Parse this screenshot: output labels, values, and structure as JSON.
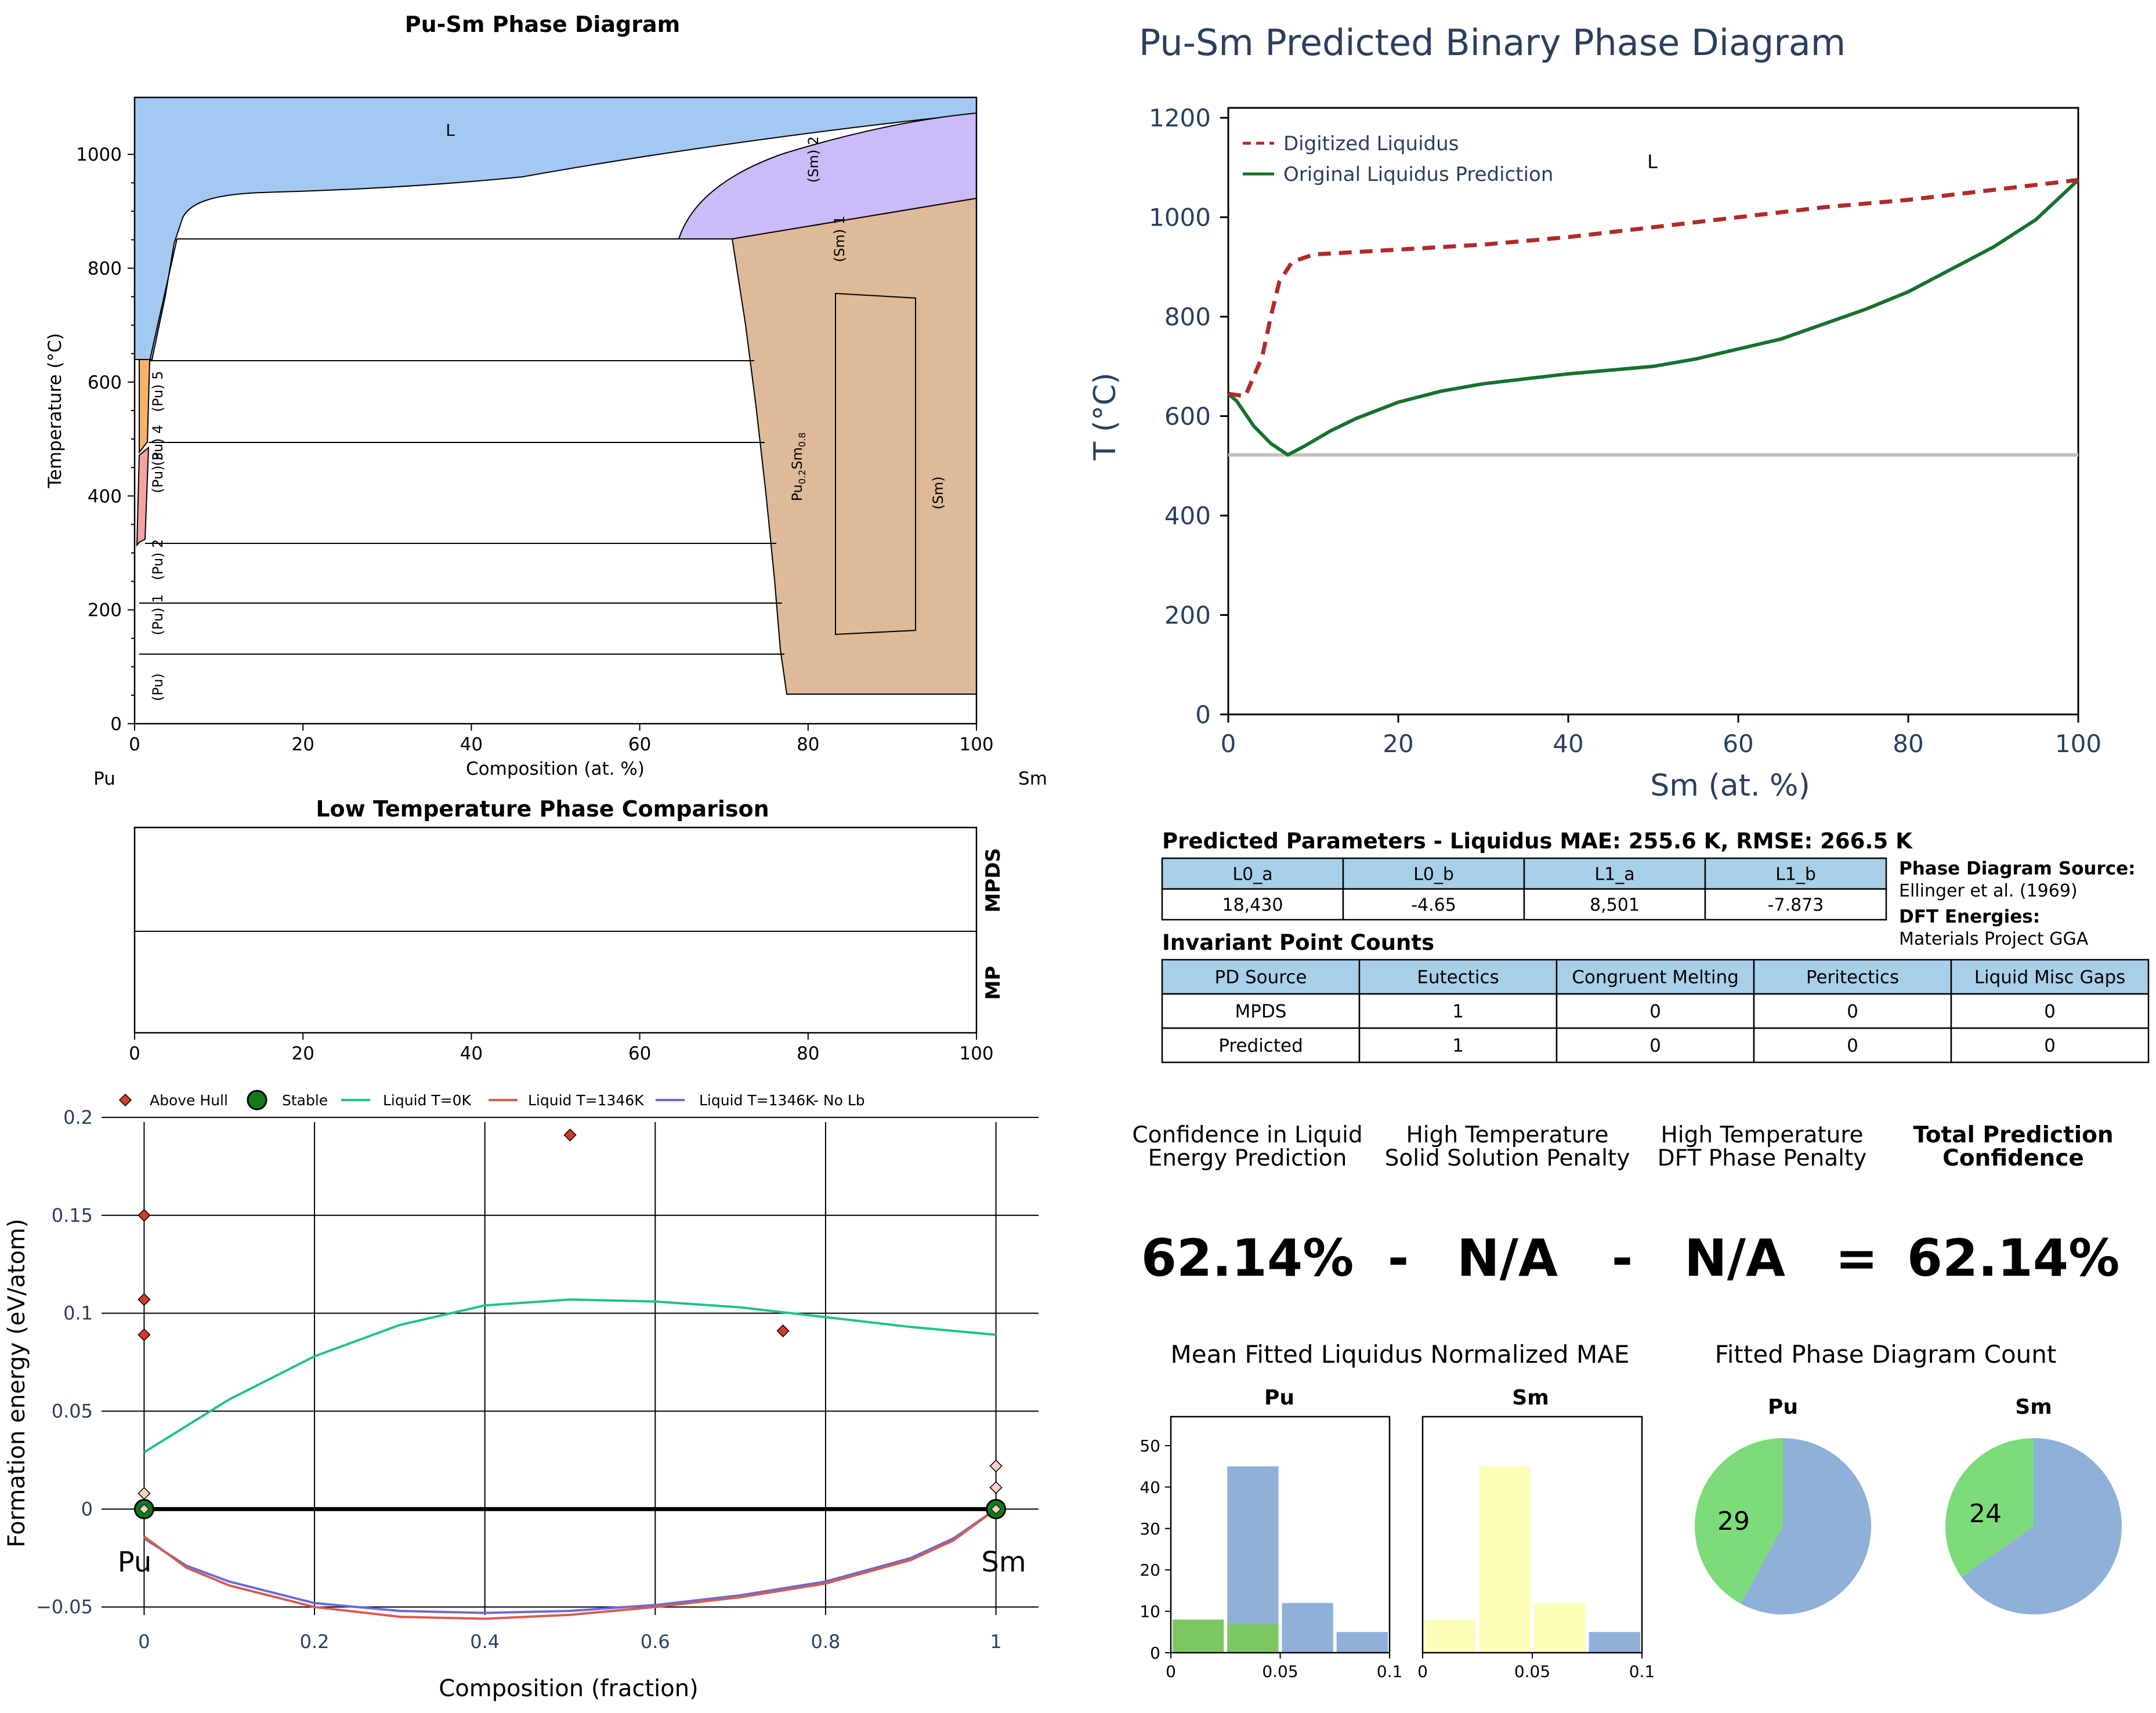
{
  "colors": {
    "liquid": "#a3c9f2",
    "sm2": "#ccbbf9",
    "intermetallic": "#deba98",
    "pu5": "#f6b26b",
    "pu4": "#f4a3a0",
    "digitized": "#b22a2a",
    "original": "#16712e",
    "eutectic_line": "#c0c0c0",
    "table_header": "#a8cfe8",
    "hull_above": "#d63a2a",
    "hull_stable": "#127a1c",
    "liquid_0k": "#20c08e",
    "liquid_1346k": "#d85c4c",
    "liquid_nolb": "#6a6ad8",
    "hist_blue": "#8fb0d9",
    "hist_green": "#7dc763",
    "hist_yellow": "#fcfdb9",
    "pie_blue": "#8fb0d9",
    "pie_green": "#7ddc79",
    "text_dark": "#2a3f5f"
  },
  "phase_diagram": {
    "title": "Pu-Sm Phase Diagram",
    "xlabel": "Composition (at. %)",
    "ylabel": "Temperature (°C)",
    "left_element": "Pu",
    "right_element": "Sm",
    "xticks": [
      "0",
      "20",
      "40",
      "60",
      "80",
      "100"
    ],
    "yticks": [
      "0",
      "200",
      "400",
      "600",
      "800",
      "1000"
    ],
    "labels": {
      "L": "L",
      "sm2": "(Sm) 2",
      "sm1": "(Sm) 1",
      "sm": "(Sm)",
      "pusm_main": "Pu",
      "pusm_sub1": "0.2",
      "pusm_mid": "Sm",
      "pusm_sub2": "0.8",
      "pu5": "(Pu) 5",
      "pu4": "(Pu) 4",
      "pu3": "(Pu) 3",
      "pu2": "(Pu) 2",
      "pu1": "(Pu) 1",
      "pu": "(Pu)"
    }
  },
  "comparison": {
    "title": "Low Temperature Phase Comparison",
    "row1": "MPDS",
    "row2": "MP",
    "xticks": [
      "0",
      "20",
      "40",
      "60",
      "80",
      "100"
    ]
  },
  "hull": {
    "xlabel": "Composition (fraction)",
    "ylabel": "Formation energy (eV/atom)",
    "xticks": [
      "0",
      "0.2",
      "0.4",
      "0.6",
      "0.8",
      "1"
    ],
    "yticks": [
      "−0.05",
      "0",
      "0.05",
      "0.1",
      "0.15",
      "0.2"
    ],
    "left_element": "Pu",
    "right_element": "Sm",
    "legend": [
      "Above Hull",
      "Stable",
      "Liquid T=0K",
      "Liquid T=1346K",
      "Liquid T=1346K- No Lb"
    ]
  },
  "predicted": {
    "title": "Pu-Sm Predicted Binary Phase Diagram",
    "xlabel": "Sm (at. %)",
    "ylabel": "T (°C)",
    "xticks": [
      "0",
      "20",
      "40",
      "60",
      "80",
      "100"
    ],
    "yticks": [
      "0",
      "200",
      "400",
      "600",
      "800",
      "1000",
      "1200"
    ],
    "legend": [
      "Digitized Liquidus",
      "Original Liquidus Prediction"
    ],
    "label_L": "L"
  },
  "params": {
    "title": "Predicted Parameters - Liquidus MAE: 255.6 K, RMSE: 266.5 K",
    "headers": [
      "L0_a",
      "L0_b",
      "L1_a",
      "L1_b"
    ],
    "values": [
      "18,430",
      "-4.65",
      "8,501",
      "-7.873"
    ],
    "source_label": "Phase Diagram Source:",
    "source_value": "Ellinger et al. (1969)",
    "dft_label": "DFT Energies:",
    "dft_value": "Materials Project GGA"
  },
  "invariants": {
    "title": "Invariant Point Counts",
    "headers": [
      "PD Source",
      "Eutectics",
      "Congruent Melting",
      "Peritectics",
      "Liquid Misc Gaps"
    ],
    "rows": [
      [
        "MPDS",
        "1",
        "0",
        "0",
        "0"
      ],
      [
        "Predicted",
        "1",
        "0",
        "0",
        "0"
      ]
    ]
  },
  "confidence": {
    "h1a": "Confidence in Liquid",
    "h1b": "Energy Prediction",
    "h2a": "High Temperature",
    "h2b": "Solid Solution Penalty",
    "h3a": "High Temperature",
    "h3b": "DFT Phase Penalty",
    "h4a": "Total Prediction",
    "h4b": "Confidence",
    "v1": "62.14%",
    "op1": "-",
    "v2": "N/A",
    "op2": "-",
    "v3": "N/A",
    "op3": "=",
    "v4": "62.14%"
  },
  "mae_hist": {
    "title": "Mean Fitted Liquidus Normalized MAE",
    "left_title": "Pu",
    "right_title": "Sm",
    "yticks": [
      "0",
      "10",
      "20",
      "30",
      "40",
      "50"
    ],
    "xticks": [
      "0",
      "0.05",
      "0.1"
    ]
  },
  "pd_count": {
    "title": "Fitted Phase Diagram Count",
    "left_title": "Pu",
    "right_title": "Sm",
    "left_value": "29",
    "right_value": "24"
  },
  "chart_data": [
    {
      "type": "line",
      "title": "Pu-Sm Predicted Binary Phase Diagram",
      "xlabel": "Sm (at. %)",
      "ylabel": "T (°C)",
      "xlim": [
        0,
        100
      ],
      "ylim": [
        0,
        1220
      ],
      "series": [
        {
          "name": "Digitized Liquidus",
          "points": [
            [
              0,
              645
            ],
            [
              2,
              640
            ],
            [
              4,
              720
            ],
            [
              5,
              800
            ],
            [
              6,
              870
            ],
            [
              7.5,
              910
            ],
            [
              10,
              925
            ],
            [
              20,
              935
            ],
            [
              30,
              945
            ],
            [
              40,
              960
            ],
            [
              50,
              980
            ],
            [
              60,
              1000
            ],
            [
              70,
              1020
            ],
            [
              80,
              1035
            ],
            [
              90,
              1055
            ],
            [
              100,
              1075
            ]
          ]
        },
        {
          "name": "Original Liquidus Prediction",
          "points": [
            [
              0,
              645
            ],
            [
              1,
              630
            ],
            [
              3,
              580
            ],
            [
              5,
              545
            ],
            [
              7,
              522
            ],
            [
              9,
              540
            ],
            [
              12,
              570
            ],
            [
              15,
              595
            ],
            [
              20,
              628
            ],
            [
              25,
              650
            ],
            [
              30,
              665
            ],
            [
              40,
              685
            ],
            [
              50,
              700
            ],
            [
              55,
              715
            ],
            [
              60,
              735
            ],
            [
              65,
              755
            ],
            [
              70,
              785
            ],
            [
              75,
              815
            ],
            [
              80,
              850
            ],
            [
              85,
              895
            ],
            [
              90,
              940
            ],
            [
              95,
              995
            ],
            [
              100,
              1075
            ]
          ]
        }
      ],
      "eutectic_line": 522
    },
    {
      "type": "scatter",
      "xlabel": "Composition (fraction)",
      "ylabel": "Formation energy (eV/atom)",
      "xlim": [
        -0.05,
        1.05
      ],
      "ylim": [
        -0.06,
        0.205
      ],
      "above_hull": [
        [
          0,
          0.15
        ],
        [
          0,
          0.107
        ],
        [
          0,
          0.089
        ],
        [
          0,
          0.008
        ],
        [
          0.5,
          0.191
        ],
        [
          0.75,
          0.091
        ],
        [
          1,
          0.022
        ],
        [
          1,
          0.011
        ]
      ],
      "stable": [
        [
          0,
          0
        ],
        [
          1,
          0
        ]
      ],
      "liquid_0k": [
        [
          0,
          0.029
        ],
        [
          0.1,
          0.056
        ],
        [
          0.2,
          0.078
        ],
        [
          0.3,
          0.094
        ],
        [
          0.4,
          0.104
        ],
        [
          0.5,
          0.107
        ],
        [
          0.6,
          0.106
        ],
        [
          0.7,
          0.103
        ],
        [
          0.8,
          0.098
        ],
        [
          0.9,
          0.093
        ],
        [
          1,
          0.089
        ]
      ],
      "liquid_1346k": [
        [
          0,
          -0.014
        ],
        [
          0.05,
          -0.03
        ],
        [
          0.1,
          -0.039
        ],
        [
          0.2,
          -0.05
        ],
        [
          0.3,
          -0.055
        ],
        [
          0.4,
          -0.056
        ],
        [
          0.5,
          -0.054
        ],
        [
          0.6,
          -0.05
        ],
        [
          0.7,
          -0.045
        ],
        [
          0.8,
          -0.038
        ],
        [
          0.9,
          -0.026
        ],
        [
          0.95,
          -0.016
        ],
        [
          1,
          0
        ]
      ],
      "liquid_nolb": [
        [
          0,
          -0.015
        ],
        [
          0.05,
          -0.029
        ],
        [
          0.1,
          -0.037
        ],
        [
          0.2,
          -0.048
        ],
        [
          0.3,
          -0.052
        ],
        [
          0.4,
          -0.053
        ],
        [
          0.5,
          -0.052
        ],
        [
          0.6,
          -0.049
        ],
        [
          0.7,
          -0.044
        ],
        [
          0.8,
          -0.037
        ],
        [
          0.9,
          -0.025
        ],
        [
          0.95,
          -0.015
        ],
        [
          1,
          0
        ]
      ]
    },
    {
      "type": "bar",
      "title": "Pu",
      "bins": [
        [
          0,
          0.025
        ],
        [
          0.025,
          0.05
        ],
        [
          0.05,
          0.075
        ],
        [
          0.075,
          0.1
        ]
      ],
      "series": [
        {
          "values": [
            0,
            45,
            12,
            5
          ]
        },
        {
          "values": [
            8,
            7,
            0,
            0
          ]
        }
      ],
      "ylim": [
        0,
        57
      ]
    },
    {
      "type": "bar",
      "title": "Sm",
      "bins": [
        [
          0,
          0.025
        ],
        [
          0.025,
          0.05
        ],
        [
          0.05,
          0.075
        ],
        [
          0.075,
          0.1
        ]
      ],
      "series": [
        {
          "values": [
            8,
            45,
            12,
            0
          ]
        },
        {
          "values": [
            0,
            0,
            0,
            5
          ]
        }
      ],
      "ylim": [
        0,
        57
      ]
    },
    {
      "type": "pie",
      "title": "Pu",
      "values": [
        29,
        40
      ]
    },
    {
      "type": "pie",
      "title": "Sm",
      "values": [
        24,
        45
      ]
    }
  ]
}
